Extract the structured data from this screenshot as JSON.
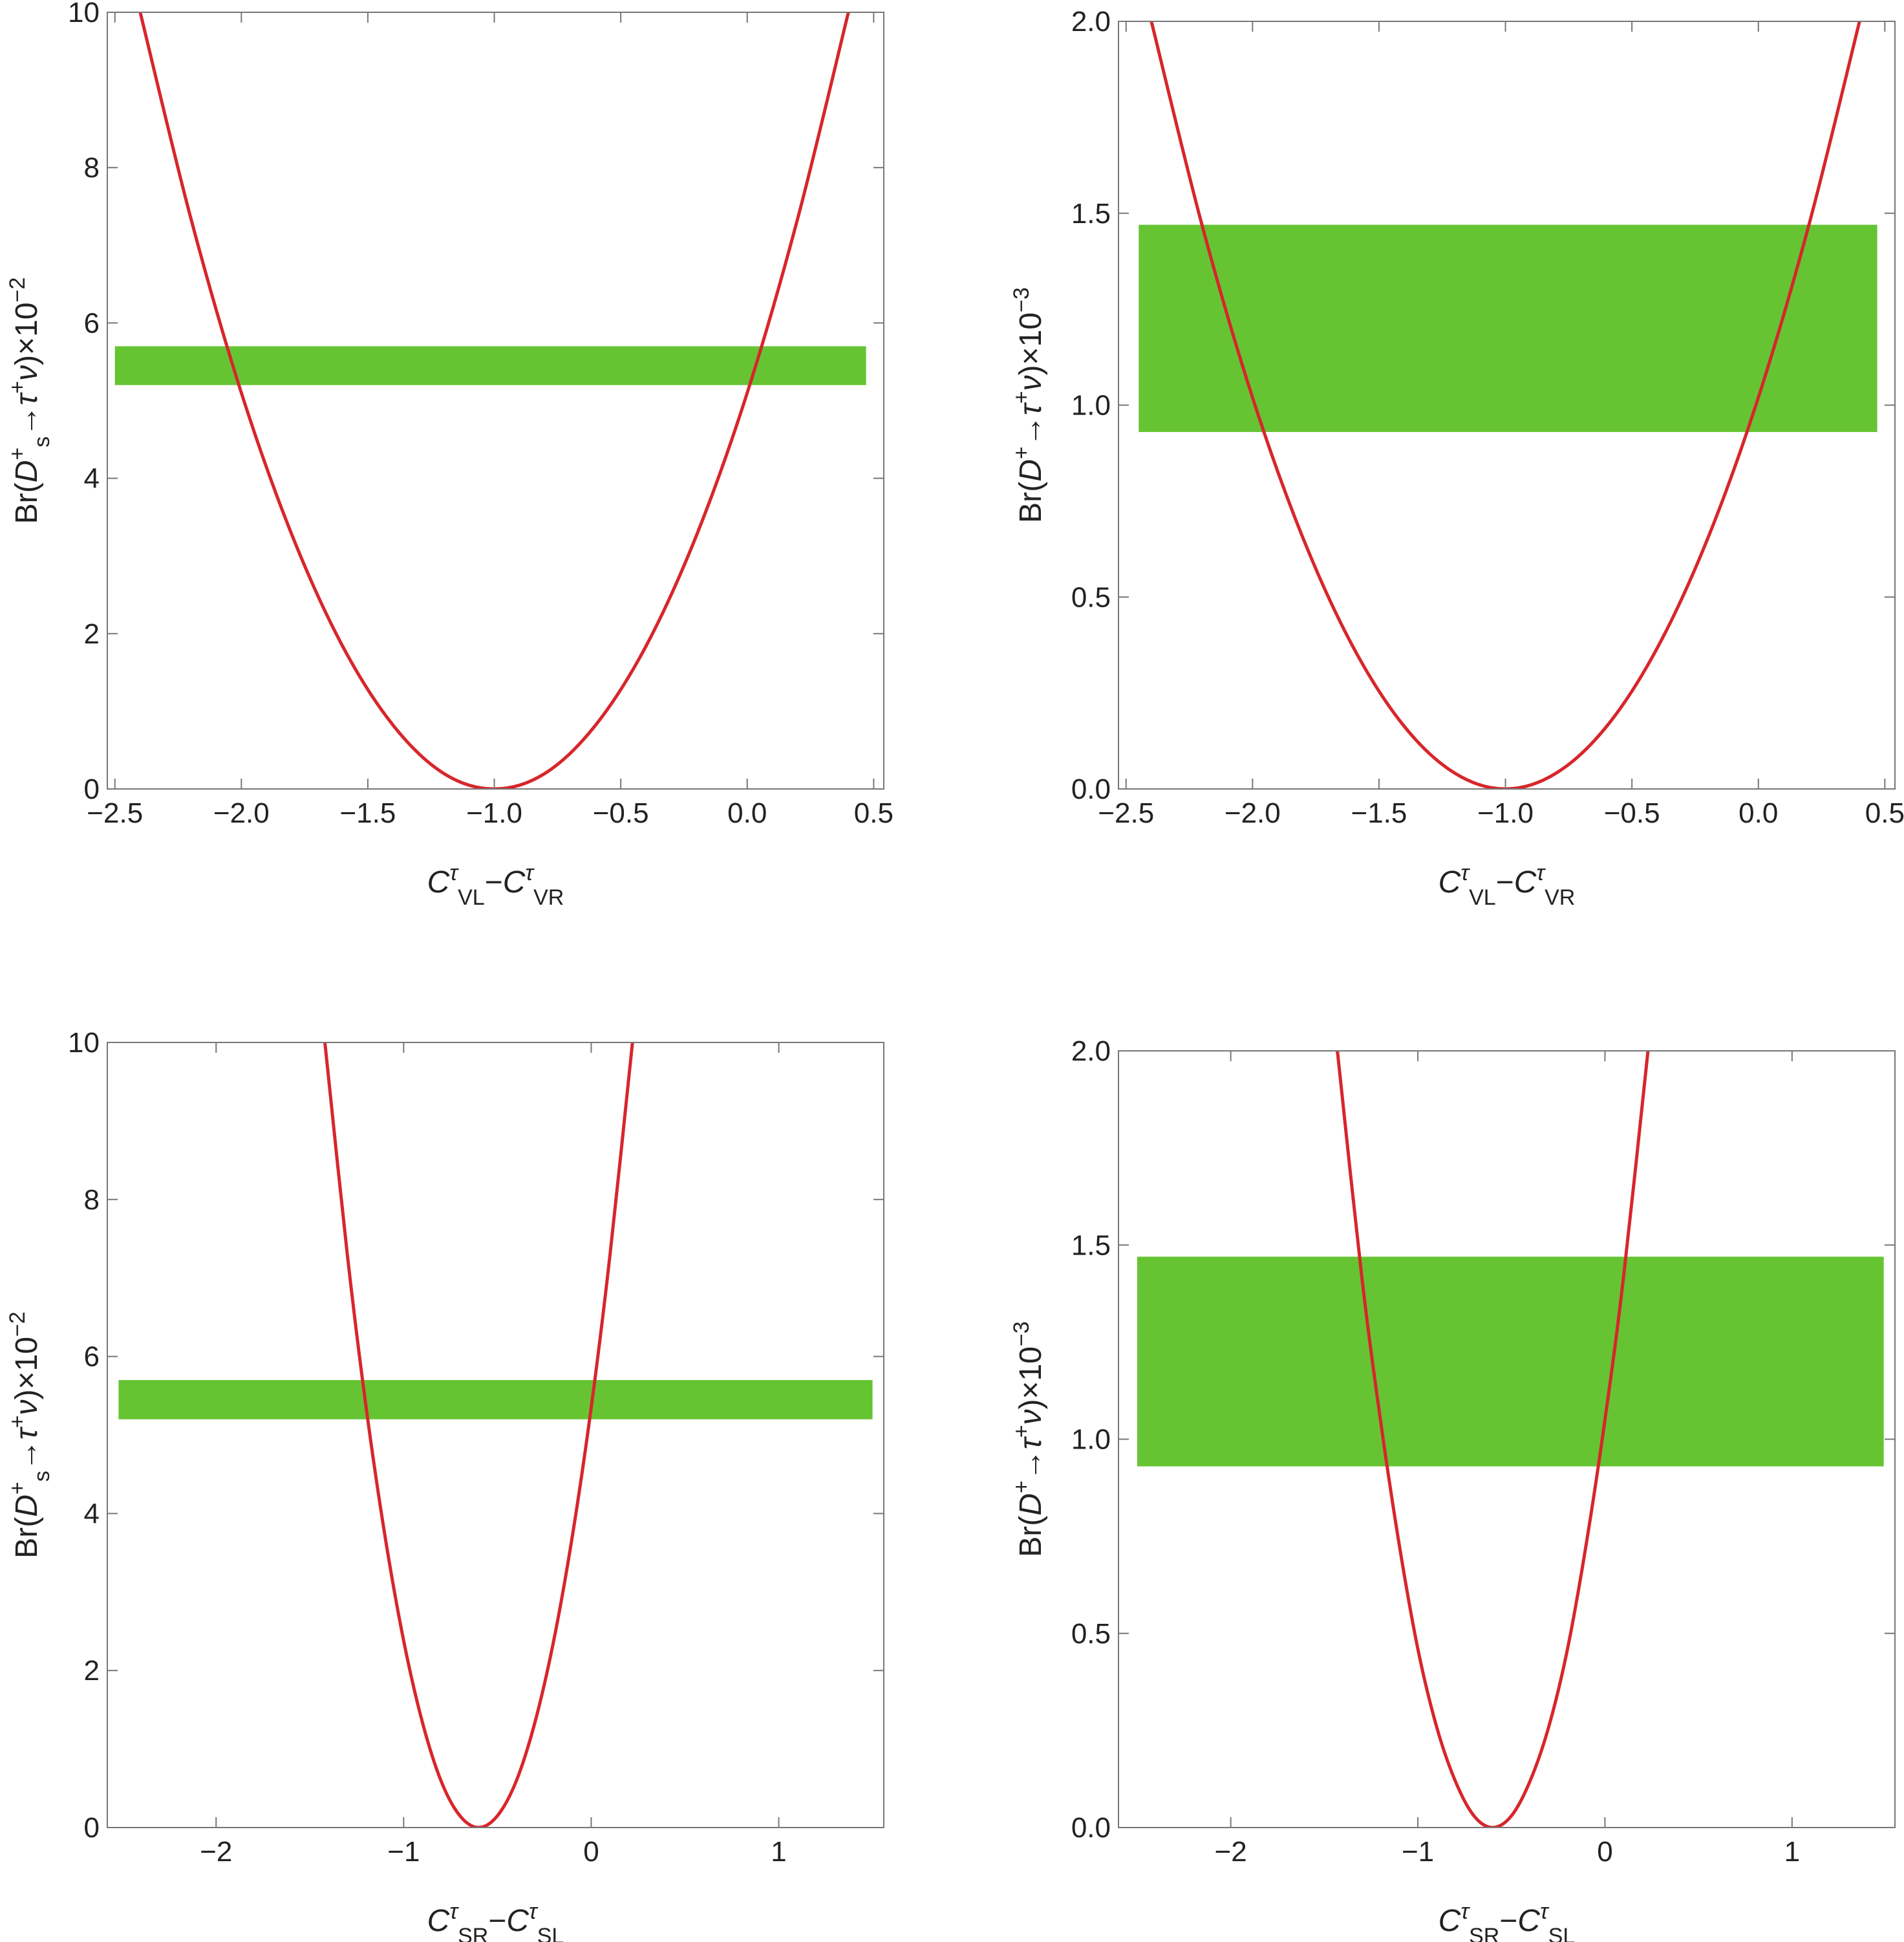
{
  "chart_data": [
    {
      "type": "line",
      "xlabel": [
        {
          "t": "C",
          "style": "italic"
        },
        {
          "t": "τ",
          "style": "italic-sup"
        },
        {
          "t": "VL",
          "style": "sub"
        },
        {
          "t": "−"
        },
        {
          "t": "C",
          "style": "italic"
        },
        {
          "t": "τ",
          "style": "italic-sup"
        },
        {
          "t": "VR",
          "style": "sub"
        }
      ],
      "ylabel": [
        {
          "t": "Br("
        },
        {
          "t": "D",
          "style": "italic"
        },
        {
          "t": "+",
          "style": "sup"
        },
        {
          "t": "s",
          "style": "sub"
        },
        {
          "t": "→"
        },
        {
          "t": "τ",
          "style": "italic"
        },
        {
          "t": "+",
          "style": "sup"
        },
        {
          "t": "ν",
          "style": "italic"
        },
        {
          "t": ")×10"
        },
        {
          "t": "−2",
          "style": "sup"
        }
      ],
      "x": [
        -2.4,
        -2.2,
        -2.0,
        -1.8,
        -1.6,
        -1.4,
        -1.2,
        -1.0,
        -0.8,
        -0.6,
        -0.4,
        -0.2,
        0.0,
        0.2,
        0.4
      ],
      "series": [
        {
          "color": "#d7262b",
          "values": [
            10,
            7.35,
            5.1,
            3.27,
            1.84,
            0.82,
            0.2,
            0,
            0.2,
            0.82,
            1.84,
            3.27,
            5.1,
            7.35,
            10
          ]
        }
      ],
      "band": {
        "color": "#66c433",
        "x": [
          -2.5,
          0.47
        ],
        "y": [
          5.2,
          5.7
        ]
      },
      "xlim": [
        -2.53,
        0.54
      ],
      "ylim": [
        0,
        10
      ],
      "xticks": [
        {
          "value": -2.5,
          "label": "−2.5"
        },
        {
          "value": -2,
          "label": "−2.0"
        },
        {
          "value": -1.5,
          "label": "−1.5"
        },
        {
          "value": -1,
          "label": "−1.0"
        },
        {
          "value": -0.5,
          "label": "−0.5"
        },
        {
          "value": 0,
          "label": "0.0"
        },
        {
          "value": 0.5,
          "label": "0.5"
        }
      ],
      "yticks": [
        0,
        2,
        4,
        6,
        8,
        10
      ]
    },
    {
      "type": "line",
      "xlabel": [
        {
          "t": "C",
          "style": "italic"
        },
        {
          "t": "τ",
          "style": "italic-sup"
        },
        {
          "t": "VL",
          "style": "sub"
        },
        {
          "t": "−"
        },
        {
          "t": "C",
          "style": "italic"
        },
        {
          "t": "τ",
          "style": "italic-sup"
        },
        {
          "t": "VR",
          "style": "sub"
        }
      ],
      "ylabel": [
        {
          "t": "Br("
        },
        {
          "t": "D",
          "style": "italic"
        },
        {
          "t": "+",
          "style": "sup"
        },
        {
          "t": "→"
        },
        {
          "t": "τ",
          "style": "italic"
        },
        {
          "t": "+",
          "style": "sup"
        },
        {
          "t": "ν",
          "style": "italic"
        },
        {
          "t": ")×10"
        },
        {
          "t": "−3",
          "style": "sup"
        }
      ],
      "x": [
        -2.4,
        -2.2,
        -2.0,
        -1.8,
        -1.6,
        -1.4,
        -1.2,
        -1.0,
        -0.8,
        -0.6,
        -0.4,
        -0.2,
        0.0,
        0.2,
        0.4
      ],
      "series": [
        {
          "color": "#d7262b",
          "values": [
            2,
            1.47,
            1.02,
            0.653,
            0.367,
            0.163,
            0.041,
            0,
            0.041,
            0.163,
            0.367,
            0.653,
            1.02,
            1.47,
            2
          ]
        }
      ],
      "band": {
        "color": "#66c433",
        "x": [
          -2.45,
          0.47
        ],
        "y": [
          0.93,
          1.47
        ]
      },
      "xlim": [
        -2.53,
        0.54
      ],
      "ylim": [
        0,
        2
      ],
      "xticks": [
        {
          "value": -2.5,
          "label": "−2.5"
        },
        {
          "value": -2,
          "label": "−2.0"
        },
        {
          "value": -1.5,
          "label": "−1.5"
        },
        {
          "value": -1,
          "label": "−1.0"
        },
        {
          "value": -0.5,
          "label": "−0.5"
        },
        {
          "value": 0,
          "label": "0.0"
        },
        {
          "value": 0.5,
          "label": "0.5"
        }
      ],
      "yticks": [
        {
          "value": 0,
          "label": "0.0"
        },
        {
          "value": 0.5,
          "label": "0.5"
        },
        {
          "value": 1,
          "label": "1.0"
        },
        {
          "value": 1.5,
          "label": "1.5"
        },
        {
          "value": 2,
          "label": "2.0"
        }
      ]
    },
    {
      "type": "line",
      "xlabel": [
        {
          "t": "C",
          "style": "italic"
        },
        {
          "t": "τ",
          "style": "italic-sup"
        },
        {
          "t": "SR",
          "style": "sub"
        },
        {
          "t": "−"
        },
        {
          "t": "C",
          "style": "italic"
        },
        {
          "t": "τ",
          "style": "italic-sup"
        },
        {
          "t": "SL",
          "style": "sub"
        }
      ],
      "ylabel": [
        {
          "t": "Br("
        },
        {
          "t": "D",
          "style": "italic"
        },
        {
          "t": "+",
          "style": "sup"
        },
        {
          "t": "s",
          "style": "sub"
        },
        {
          "t": "→"
        },
        {
          "t": "τ",
          "style": "italic"
        },
        {
          "t": "+",
          "style": "sup"
        },
        {
          "t": "ν",
          "style": "italic"
        },
        {
          "t": ")×10"
        },
        {
          "t": "−2",
          "style": "sup"
        }
      ],
      "x": [
        -1.42,
        -1.3,
        -1.2,
        -1.1,
        -1.0,
        -0.9,
        -0.8,
        -0.7,
        -0.6,
        -0.5,
        -0.4,
        -0.3,
        -0.2,
        -0.1,
        0.0,
        0.1,
        0.22
      ],
      "series": [
        {
          "color": "#d7262b",
          "values": [
            10,
            7.29,
            5.35,
            3.72,
            2.38,
            1.34,
            0.59,
            0.15,
            0,
            0.15,
            0.59,
            1.34,
            2.38,
            3.72,
            5.35,
            7.29,
            10
          ]
        }
      ],
      "band": {
        "color": "#66c433",
        "x": [
          -2.52,
          1.5
        ],
        "y": [
          5.2,
          5.7
        ]
      },
      "xlim": [
        -2.58,
        1.56
      ],
      "ylim": [
        0,
        10
      ],
      "xticks": [
        {
          "value": -2,
          "label": "−2"
        },
        {
          "value": -1,
          "label": "−1"
        },
        0,
        1
      ],
      "yticks": [
        0,
        2,
        4,
        6,
        8,
        10
      ]
    },
    {
      "type": "line",
      "xlabel": [
        {
          "t": "C",
          "style": "italic"
        },
        {
          "t": "τ",
          "style": "italic-sup"
        },
        {
          "t": "SR",
          "style": "sub"
        },
        {
          "t": "−"
        },
        {
          "t": "C",
          "style": "italic"
        },
        {
          "t": "τ",
          "style": "italic-sup"
        },
        {
          "t": "SL",
          "style": "sub"
        }
      ],
      "ylabel": [
        {
          "t": "Br("
        },
        {
          "t": "D",
          "style": "italic"
        },
        {
          "t": "+",
          "style": "sup"
        },
        {
          "t": "→"
        },
        {
          "t": "τ",
          "style": "italic"
        },
        {
          "t": "+",
          "style": "sup"
        },
        {
          "t": "ν",
          "style": "italic"
        },
        {
          "t": ")×10"
        },
        {
          "t": "−3",
          "style": "sup"
        }
      ],
      "x": [
        -1.43,
        -1.3,
        -1.2,
        -1.1,
        -1.0,
        -0.9,
        -0.8,
        -0.7,
        -0.6,
        -0.5,
        -0.4,
        -0.3,
        -0.2,
        -0.1,
        0.0,
        0.1,
        0.23
      ],
      "series": [
        {
          "color": "#d7262b",
          "values": [
            2,
            1.42,
            1.05,
            0.73,
            0.46,
            0.26,
            0.12,
            0.03,
            0,
            0.03,
            0.12,
            0.26,
            0.46,
            0.73,
            1.05,
            1.42,
            2
          ]
        }
      ],
      "band": {
        "color": "#66c433",
        "x": [
          -2.5,
          1.49
        ],
        "y": [
          0.93,
          1.47
        ]
      },
      "xlim": [
        -2.6,
        1.55
      ],
      "ylim": [
        0,
        2
      ],
      "xticks": [
        {
          "value": -2,
          "label": "−2"
        },
        {
          "value": -1,
          "label": "−1"
        },
        0,
        1
      ],
      "yticks": [
        {
          "value": 0,
          "label": "0.0"
        },
        {
          "value": 0.5,
          "label": "0.5"
        },
        {
          "value": 1,
          "label": "1.0"
        },
        {
          "value": 1.5,
          "label": "1.5"
        },
        {
          "value": 2,
          "label": "2.0"
        }
      ]
    }
  ]
}
